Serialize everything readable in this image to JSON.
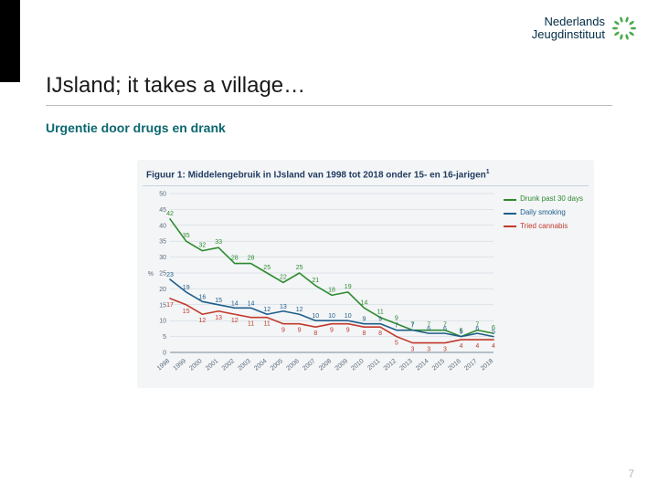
{
  "logo": {
    "line1": "Nederlands",
    "line2": "Jeugdinstituut",
    "mark_color": "#4aa94a"
  },
  "title": "IJsland; it takes a village…",
  "subtitle": "Urgentie door drugs en drank",
  "page_number": "7",
  "chart": {
    "type": "line",
    "title_prefix": "Figuur 1: ",
    "title": "Middelengebruik in IJsland van 1998 tot 2018 onder 15- en 16-jarigen",
    "title_sup": "1",
    "title_color": "#1f3a5f",
    "title_fontsize": 10,
    "background_color": "#f3f5f7",
    "grid_color": "#c9d2db",
    "axis_color": "#5c6b7a",
    "axis_fontsize": 7,
    "label_fontsize": 7,
    "value_label_fontsize": 7,
    "ylim": [
      0,
      50
    ],
    "ytick_step": 5,
    "y_axis_pct_label": "%",
    "x_categories": [
      "1998",
      "1999",
      "2000",
      "2001",
      "2002",
      "2003",
      "2004",
      "2005",
      "2006",
      "2007",
      "2008",
      "2009",
      "2010",
      "2011",
      "2012",
      "2013",
      "2014",
      "2015",
      "2016",
      "2017",
      "2018"
    ],
    "series": [
      {
        "name": "Drunk past 30 days",
        "color": "#2e8b2e",
        "line_width": 1.6,
        "values": [
          42,
          35,
          32,
          33,
          28,
          28,
          25,
          22,
          25,
          21,
          18,
          19,
          14,
          11,
          9,
          7,
          7,
          7,
          5,
          7,
          6
        ]
      },
      {
        "name": "Daily smoking",
        "color": "#1f5e8b",
        "line_width": 1.6,
        "values": [
          23,
          19,
          16,
          15,
          14,
          14,
          12,
          13,
          12,
          10,
          10,
          10,
          9,
          9,
          7,
          7,
          6,
          6,
          5,
          6,
          5
        ]
      },
      {
        "name": "Tried cannabis",
        "color": "#c23a2a",
        "line_width": 1.6,
        "values": [
          17,
          15,
          12,
          13,
          12,
          11,
          11,
          9,
          9,
          8,
          9,
          9,
          8,
          8,
          5,
          3,
          3,
          3,
          4,
          4,
          4
        ]
      }
    ],
    "legend": {
      "position": "top-right",
      "fontsize": 8
    }
  }
}
